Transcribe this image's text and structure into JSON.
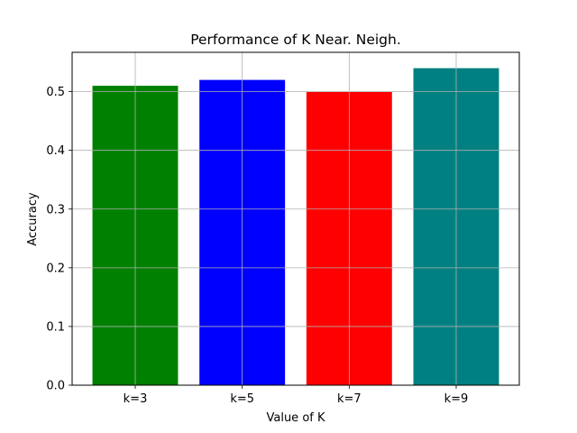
{
  "chart_data": {
    "type": "bar",
    "title": "Performance of K Near. Neigh.",
    "xlabel": "Value of K",
    "ylabel": "Accuracy",
    "categories": [
      "k=3",
      "k=5",
      "k=7",
      "k=9"
    ],
    "values": [
      0.51,
      0.52,
      0.5,
      0.54
    ],
    "colors": [
      "#008000",
      "#0000ff",
      "#ff0000",
      "#008080"
    ],
    "ylim": [
      0,
      0.567
    ],
    "yticks": [
      0.0,
      0.1,
      0.2,
      0.3,
      0.4,
      0.5
    ],
    "ytick_labels": [
      "0.0",
      "0.1",
      "0.2",
      "0.3",
      "0.4",
      "0.5"
    ],
    "grid": true,
    "legend": "none"
  }
}
